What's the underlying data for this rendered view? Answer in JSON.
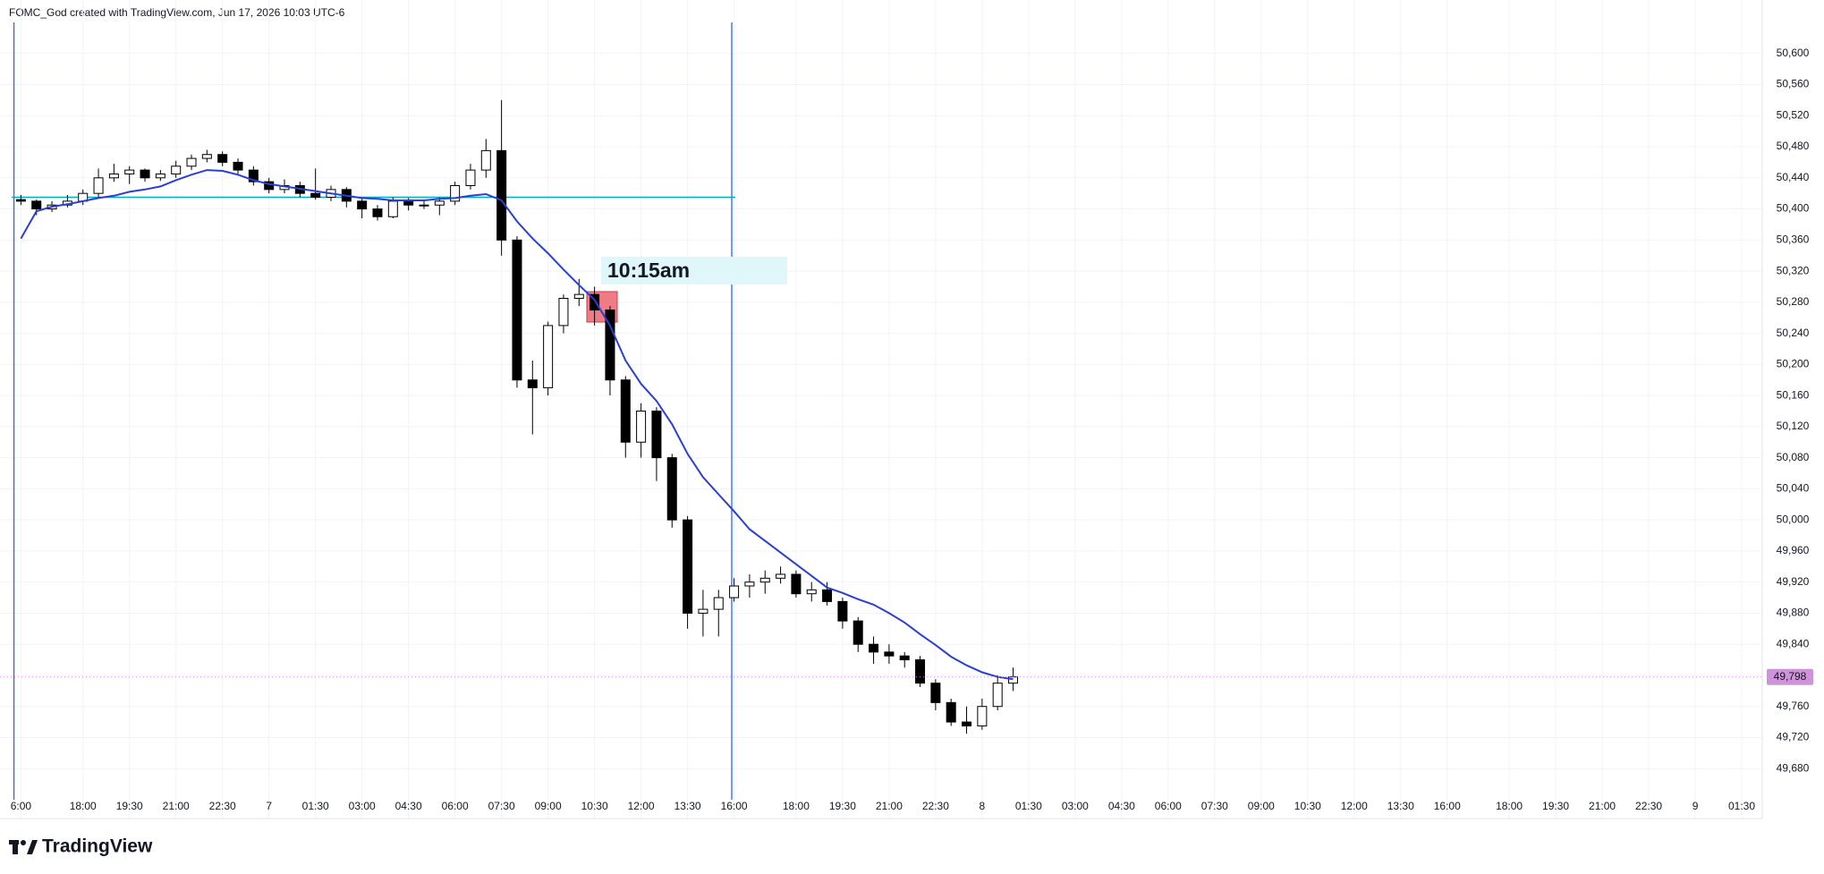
{
  "header": "FOMC_God created with TradingView.com, Jun 17, 2026 10:03 UTC-6",
  "footer_logo": "TradingView",
  "chart_data": {
    "type": "candlestick",
    "annotation": "10:15am",
    "categories": [
      "6:00",
      null,
      null,
      null,
      "18:00",
      null,
      null,
      "19:30",
      null,
      null,
      "21:00",
      null,
      null,
      "22:30",
      null,
      null,
      "7",
      null,
      null,
      "01:30",
      null,
      null,
      "03:00",
      null,
      null,
      "04:30",
      null,
      null,
      "06:00",
      null,
      null,
      "07:30",
      null,
      null,
      "09:00",
      null,
      null,
      "10:30",
      null,
      null,
      "12:00",
      null,
      null,
      "13:30",
      null,
      null,
      "16:00",
      null,
      null,
      null,
      "18:00",
      null,
      null,
      "19:30",
      null,
      null,
      "21:00",
      null,
      null,
      "22:30",
      null,
      null,
      "8",
      null,
      null,
      "01:30",
      null,
      null,
      "03:00",
      null,
      null,
      "04:30",
      null,
      null,
      "06:00",
      null,
      null,
      "07:30",
      null,
      null,
      "09:00",
      null,
      null,
      "10:30",
      null,
      null,
      "12:00",
      null,
      null,
      "13:30",
      null,
      null,
      "16:00",
      null,
      null,
      null,
      "18:00",
      null,
      null,
      "19:30",
      null,
      null,
      "21:00",
      null,
      null,
      "22:30",
      null,
      null,
      "9",
      null,
      null,
      "01:30"
    ],
    "open": [
      50412,
      50410,
      50400,
      50405,
      50410,
      50420,
      50440,
      50445,
      50450,
      50440,
      50445,
      50455,
      50465,
      50470,
      50460,
      50450,
      50435,
      50425,
      50430,
      50420,
      50415,
      50425,
      50410,
      50400,
      50390,
      50410,
      50405,
      50405,
      50410,
      50430,
      50450,
      50475,
      50360,
      50180,
      50170,
      50250,
      50285,
      50290,
      50270,
      50180,
      50100,
      50140,
      50080,
      50000,
      49880,
      49885,
      49900,
      49915,
      49920,
      49925,
      49930,
      49905,
      49910,
      49895,
      49870,
      49840,
      49830,
      49825,
      49820,
      49790,
      49765,
      49740,
      49735,
      49760,
      49790,
      null,
      null,
      null,
      null,
      null,
      null,
      null,
      null,
      null,
      null,
      null,
      null,
      null,
      null,
      null,
      null,
      null,
      null,
      null,
      null,
      null,
      null,
      null,
      null,
      null,
      null,
      null,
      null,
      null,
      null,
      null,
      null,
      null,
      null,
      null,
      null,
      null,
      null,
      null,
      null,
      null,
      null,
      null,
      null,
      null,
      null,
      null
    ],
    "high": [
      50418,
      50412,
      50410,
      50418,
      50425,
      50452,
      50458,
      50455,
      50452,
      50450,
      50462,
      50470,
      50476,
      50474,
      50465,
      50455,
      50440,
      50438,
      50435,
      50452,
      50430,
      50428,
      50415,
      50405,
      50415,
      50414,
      50412,
      50415,
      50435,
      50458,
      50490,
      50540,
      50365,
      50205,
      50255,
      50290,
      50310,
      50300,
      50275,
      50185,
      50150,
      50145,
      50085,
      50005,
      49910,
      49910,
      49925,
      49930,
      49935,
      49940,
      49935,
      49920,
      49920,
      49900,
      49875,
      49850,
      49840,
      49830,
      49825,
      49795,
      49770,
      49760,
      49770,
      49800,
      49810,
      null,
      null,
      null,
      null,
      null,
      null,
      null,
      null,
      null,
      null,
      null,
      null,
      null,
      null,
      null,
      null,
      null,
      null,
      null,
      null,
      null,
      null,
      null,
      null,
      null,
      null,
      null,
      null,
      null,
      null,
      null,
      null,
      null,
      null,
      null,
      null,
      null,
      null,
      null,
      null,
      null,
      null,
      null,
      null,
      null,
      null,
      null
    ],
    "low": [
      50405,
      50392,
      50396,
      50402,
      50405,
      50415,
      50435,
      50432,
      50435,
      50436,
      50440,
      50450,
      50460,
      50455,
      50445,
      50430,
      50420,
      50420,
      50415,
      50412,
      50410,
      50402,
      50388,
      50385,
      50388,
      50398,
      50400,
      50392,
      50405,
      50425,
      50440,
      50340,
      50170,
      50110,
      50160,
      50240,
      50275,
      50250,
      50160,
      50080,
      50080,
      50050,
      49990,
      49860,
      49850,
      49850,
      49895,
      49900,
      49905,
      49918,
      49900,
      49895,
      49890,
      49860,
      49830,
      49815,
      49815,
      49810,
      49785,
      49755,
      49735,
      49725,
      49730,
      49755,
      49780,
      null,
      null,
      null,
      null,
      null,
      null,
      null,
      null,
      null,
      null,
      null,
      null,
      null,
      null,
      null,
      null,
      null,
      null,
      null,
      null,
      null,
      null,
      null,
      null,
      null,
      null,
      null,
      null,
      null,
      null,
      null,
      null,
      null,
      null,
      null,
      null,
      null,
      null,
      null,
      null,
      null,
      null,
      null,
      null,
      null,
      null,
      null
    ],
    "close": [
      50410,
      50400,
      50405,
      50410,
      50420,
      50440,
      50445,
      50450,
      50440,
      50445,
      50455,
      50465,
      50470,
      50460,
      50450,
      50435,
      50425,
      50430,
      50420,
      50415,
      50425,
      50410,
      50400,
      50390,
      50410,
      50405,
      50405,
      50410,
      50430,
      50450,
      50475,
      50360,
      50180,
      50170,
      50250,
      50285,
      50290,
      50270,
      50180,
      50100,
      50140,
      50080,
      50000,
      49880,
      49885,
      49900,
      49915,
      49920,
      49925,
      49930,
      49905,
      49910,
      49895,
      49870,
      49840,
      49830,
      49825,
      49820,
      49790,
      49765,
      49740,
      49735,
      49760,
      49790,
      49798,
      null,
      null,
      null,
      null,
      null,
      null,
      null,
      null,
      null,
      null,
      null,
      null,
      null,
      null,
      null,
      null,
      null,
      null,
      null,
      null,
      null,
      null,
      null,
      null,
      null,
      null,
      null,
      null,
      null,
      null,
      null,
      null,
      null,
      null,
      null,
      null,
      null,
      null,
      null,
      null,
      null,
      null,
      null,
      null,
      null,
      null,
      null
    ],
    "moving_average": {
      "color": "#2a3fd4",
      "values": [
        50362,
        50397,
        50403,
        50406,
        50410,
        50414,
        50417,
        50422,
        50425,
        50429,
        50437,
        50444,
        50450,
        50449,
        50444,
        50437,
        50432,
        50429,
        50426,
        50423,
        50420,
        50417,
        50414,
        50413,
        50411,
        50411,
        50411,
        50413,
        50414,
        50417,
        50419,
        50411,
        50384,
        50362,
        50343,
        50322,
        50302,
        50283,
        50250,
        50205,
        50175,
        50153,
        50123,
        50085,
        50055,
        50033,
        50011,
        49988,
        49973,
        49958,
        49943,
        49928,
        49913,
        49906,
        49898,
        49891,
        49880,
        49868,
        49853,
        49839,
        49824,
        49813,
        49804,
        49798,
        49795,
        null,
        null,
        null,
        null,
        null,
        null,
        null,
        null,
        null,
        null,
        null,
        null,
        null,
        null,
        null,
        null,
        null,
        null,
        null,
        null,
        null,
        null,
        null,
        null,
        null,
        null,
        null,
        null,
        null,
        null,
        null,
        null,
        null,
        null,
        null,
        null,
        null,
        null,
        null,
        null,
        null,
        null,
        null,
        null,
        null,
        null,
        null
      ]
    },
    "colors": {
      "up": "#ffffff",
      "down": "#000000",
      "outline": "#000000"
    },
    "ylim": [
      49640,
      50640
    ],
    "yticks": [
      {
        "value": 49680,
        "label": "49,680"
      },
      {
        "value": 49720,
        "label": "49,720"
      },
      {
        "value": 49760,
        "label": "49,760"
      },
      {
        "value": 49800,
        "label": "49,800"
      },
      {
        "value": 49840,
        "label": "49,840"
      },
      {
        "value": 49880,
        "label": "49,880"
      },
      {
        "value": 49920,
        "label": "49,920"
      },
      {
        "value": 49960,
        "label": "49,960"
      },
      {
        "value": 50000,
        "label": "50,000"
      },
      {
        "value": 50040,
        "label": "50,040"
      },
      {
        "value": 50080,
        "label": "50,080"
      },
      {
        "value": 50120,
        "label": "50,120"
      },
      {
        "value": 50160,
        "label": "50,160"
      },
      {
        "value": 50200,
        "label": "50,200"
      },
      {
        "value": 50240,
        "label": "50,240"
      },
      {
        "value": 50280,
        "label": "50,280"
      },
      {
        "value": 50320,
        "label": "50,320"
      },
      {
        "value": 50360,
        "label": "50,360"
      },
      {
        "value": 50400,
        "label": "50,400"
      },
      {
        "value": 50440,
        "label": "50,440"
      },
      {
        "value": 50480,
        "label": "50,480"
      },
      {
        "value": 50520,
        "label": "50,520"
      },
      {
        "value": 50560,
        "label": "50,560"
      },
      {
        "value": 50600,
        "label": "50,600"
      }
    ],
    "grid": true,
    "last_price": {
      "value": 49798,
      "label": "49,798",
      "color": "#ce93d8"
    },
    "hline": {
      "value": 50415,
      "color": "#00acc1"
    }
  }
}
